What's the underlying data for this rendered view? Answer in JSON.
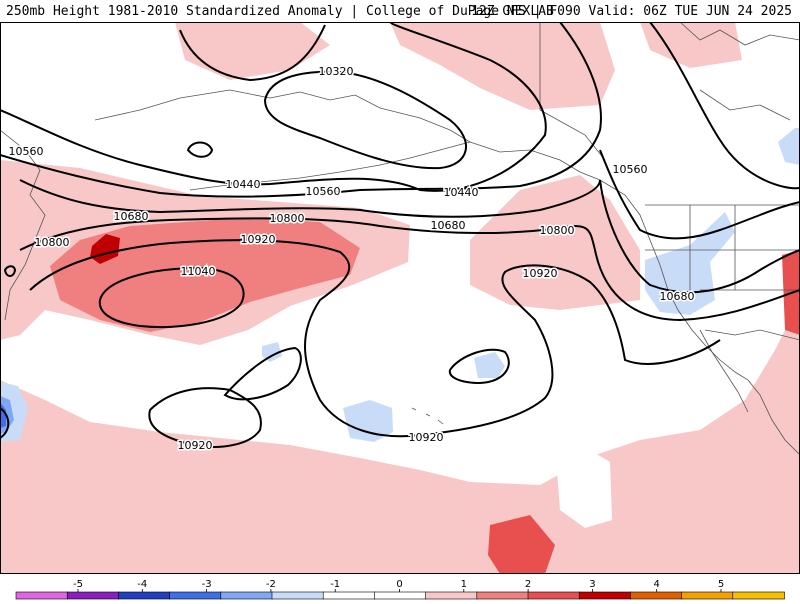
{
  "header": {
    "title": "250mb Height 1981-2010 Standardized Anomaly | College of DuPage NEXLAB",
    "run_info": "12Z GFS | F090 Valid: 06Z TUE JUN 24 2025"
  },
  "contours": [
    {
      "label": "10320"
    },
    {
      "label": "10440"
    },
    {
      "label": "10440"
    },
    {
      "label": "10560"
    },
    {
      "label": "10560"
    },
    {
      "label": "10560"
    },
    {
      "label": "10680"
    },
    {
      "label": "10680"
    },
    {
      "label": "10680"
    },
    {
      "label": "10800"
    },
    {
      "label": "10800"
    },
    {
      "label": "10800"
    },
    {
      "label": "10920"
    },
    {
      "label": "10920"
    },
    {
      "label": "10920"
    },
    {
      "label": "10920"
    },
    {
      "label": "11040"
    }
  ],
  "colorbar": {
    "ticks": [
      "-5",
      "-4",
      "-3",
      "-2",
      "-1",
      "0",
      "1",
      "2",
      "3",
      "4",
      "5"
    ],
    "colors": [
      "#e066e0",
      "#8a1fbf",
      "#1f3fbf",
      "#3f6fe6",
      "#7fa7f2",
      "#c8dcf8",
      "#ffffff",
      "#ffffff",
      "#f8c8c8",
      "#f08080",
      "#e85050",
      "#c00000",
      "#e06000",
      "#f5a000",
      "#f5c000"
    ]
  }
}
